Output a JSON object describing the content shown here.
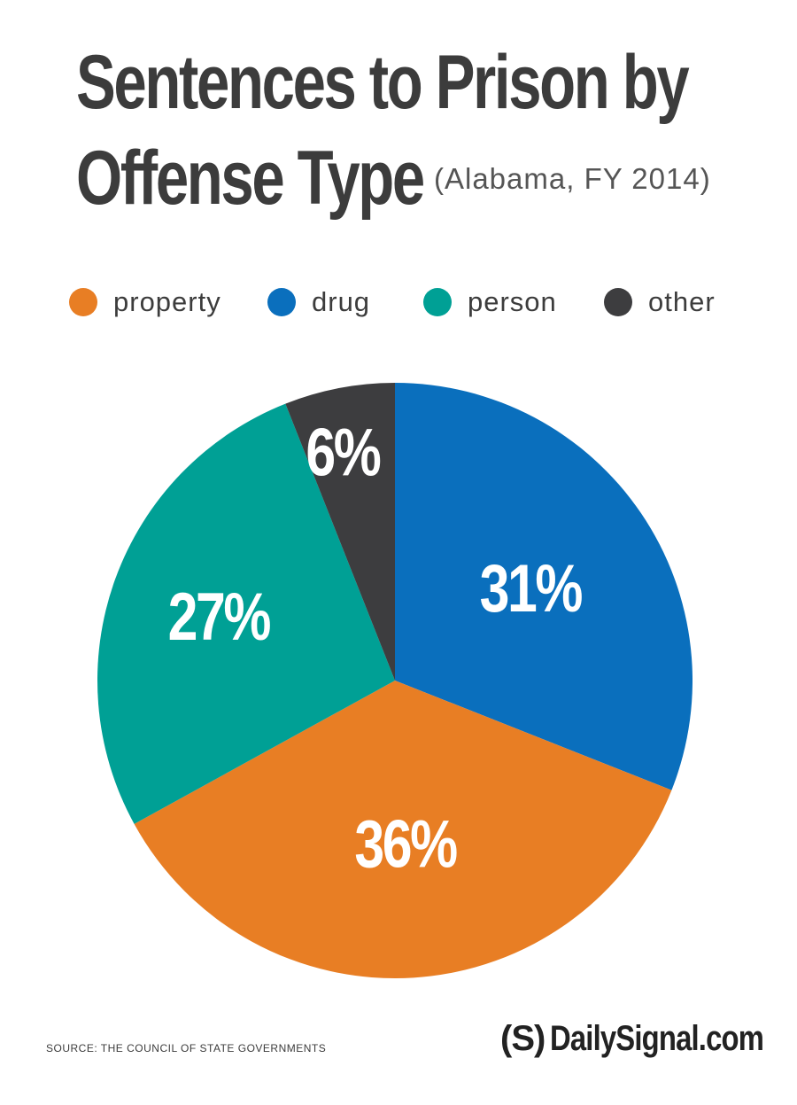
{
  "header": {
    "title_line1": "Sentences to Prison by",
    "title_line2": "Offense Type",
    "subtitle": "(Alabama, FY 2014)"
  },
  "chart_data": {
    "type": "pie",
    "title": "Sentences to Prison by Offense Type",
    "subtitle": "(Alabama, FY 2014)",
    "legend_position": "top",
    "slices": [
      {
        "name": "drug",
        "value": 31,
        "label": "31%",
        "color": "#0a6fbd"
      },
      {
        "name": "property",
        "value": 36,
        "label": "36%",
        "color": "#e87e24"
      },
      {
        "name": "person",
        "value": 27,
        "label": "27%",
        "color": "#00a095"
      },
      {
        "name": "other",
        "value": 6,
        "label": "6%",
        "color": "#3d3d3f"
      }
    ]
  },
  "legend": [
    {
      "label": "property",
      "color": "#e87e24"
    },
    {
      "label": "drug",
      "color": "#0a6fbd"
    },
    {
      "label": "person",
      "color": "#00a095"
    },
    {
      "label": "other",
      "color": "#3d3d3f"
    }
  ],
  "footer": {
    "source": "SOURCE: THE COUNCIL OF STATE GOVERNMENTS",
    "brand_mark": "(S)",
    "brand_text": "DailySignal.com"
  }
}
